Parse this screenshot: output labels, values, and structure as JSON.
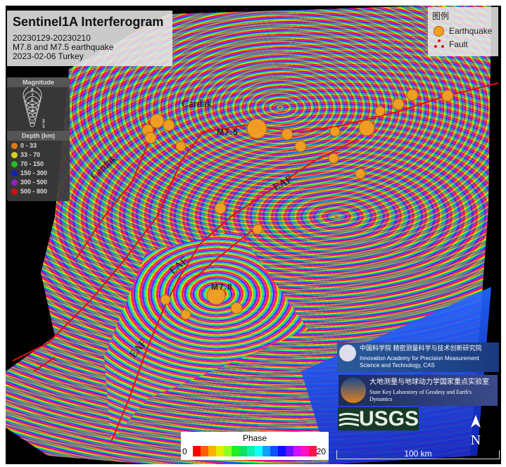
{
  "title": {
    "main": "Sentinel1A Interferogram",
    "lines": [
      "20230129-20230210",
      "M7.8 and M7.5 earthquake",
      "2023-02-06 Turkey"
    ]
  },
  "magnitude_legend": {
    "header": "Magnitude",
    "levels": [
      "8",
      "7",
      "6",
      "5",
      "4",
      "3",
      "2",
      "1"
    ]
  },
  "depth_legend": {
    "header": "Depth (km)",
    "items": [
      {
        "label": "0 - 33",
        "color": "#e07a10"
      },
      {
        "label": "33 - 70",
        "color": "#d8d020"
      },
      {
        "label": "70 - 150",
        "color": "#20c020"
      },
      {
        "label": "150 - 300",
        "color": "#1020c0"
      },
      {
        "label": "300 - 500",
        "color": "#9020c0"
      },
      {
        "label": "500 - 800",
        "color": "#d01010"
      }
    ]
  },
  "legend": {
    "title": "图例",
    "earthquake": "Earthquake",
    "fault": "Fault",
    "earthquake_color": "#f5a020",
    "fault_color": "#e01010"
  },
  "map_labels": {
    "cardak1": "Cardak",
    "cardak2": "Cardak",
    "eaf1": "EAF",
    "eaf2": "EAF",
    "eaf3": "EAF",
    "m75": "M7.5",
    "m78": "M7.8"
  },
  "logos": {
    "cas_cn": "中国科学院 精密测量科学与技术创新研究院",
    "cas_en": "Innovation Academy for Precision Measurement Science and Technology, CAS",
    "lab_cn": "大地测量与地球动力学国家重点实验室",
    "lab_en": "State Key Laboratory of Geodesy and Earth's Dynamics",
    "usgs": "USGS"
  },
  "phase_bar": {
    "title": "Phase",
    "min": "0",
    "max": "20",
    "colors": [
      "#ff0000",
      "#ff6000",
      "#ffb000",
      "#e0f000",
      "#90ff20",
      "#20f020",
      "#10e060",
      "#10f0b0",
      "#10ffff",
      "#10a0ff",
      "#1050ff",
      "#1010ff",
      "#7010ff",
      "#d010ff",
      "#ff10c0",
      "#ff1050"
    ]
  },
  "north_arrow": "N",
  "scale_bar": "100 km"
}
